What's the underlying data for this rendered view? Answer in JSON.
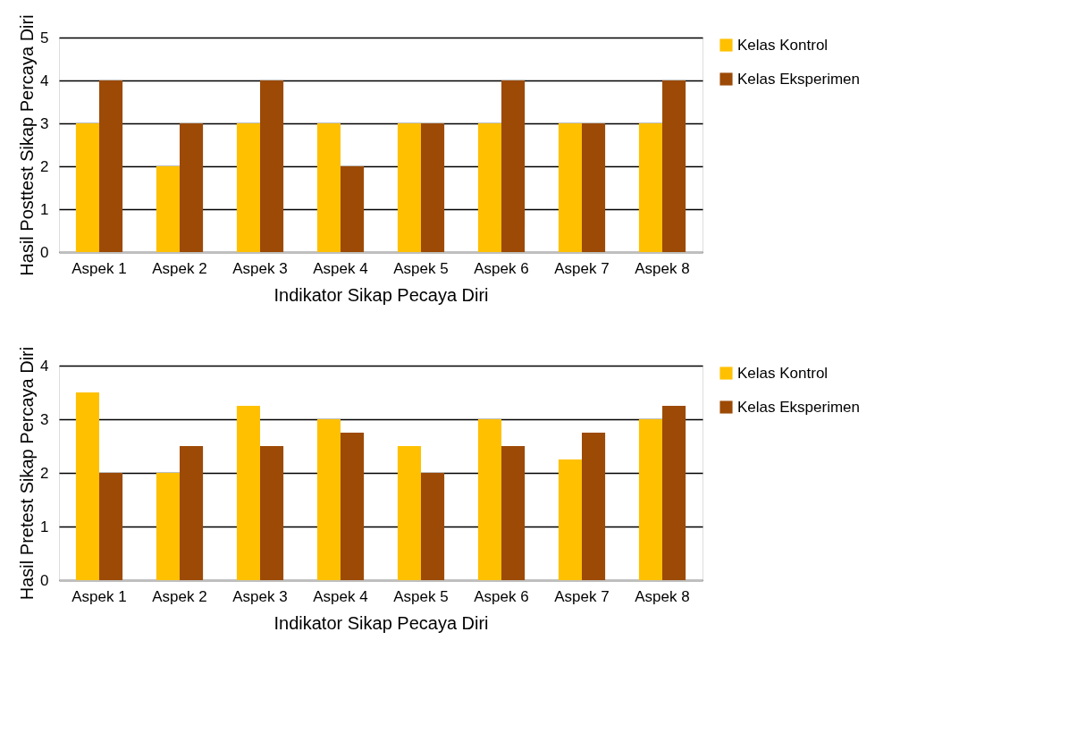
{
  "chart_data": [
    {
      "type": "bar",
      "xlabel": "Indikator Sikap Pecaya Diri",
      "ylabel": "Hasil Posttest Sikap Percaya Diri",
      "categories": [
        "Aspek 1",
        "Aspek 2",
        "Aspek 3",
        "Aspek 4",
        "Aspek 5",
        "Aspek 6",
        "Aspek 7",
        "Aspek 8"
      ],
      "ylim": [
        0,
        5
      ],
      "yticks": [
        0,
        1,
        2,
        3,
        4,
        5
      ],
      "grid": "y",
      "legend": "right",
      "series": [
        {
          "name": "Kelas Kontrol",
          "color": "#ffc000",
          "values": [
            3,
            2,
            3,
            3,
            3,
            3,
            3,
            3
          ]
        },
        {
          "name": "Kelas Eksperimen",
          "color": "#9c4a06",
          "values": [
            4,
            3,
            4,
            2,
            3,
            4,
            3,
            4
          ]
        }
      ]
    },
    {
      "type": "bar",
      "xlabel": "Indikator Sikap Pecaya Diri",
      "ylabel": "Hasil Pretest Sikap Percaya Diri",
      "categories": [
        "Aspek 1",
        "Aspek 2",
        "Aspek 3",
        "Aspek 4",
        "Aspek 5",
        "Aspek 6",
        "Aspek 7",
        "Aspek 8"
      ],
      "ylim": [
        0,
        4
      ],
      "yticks": [
        0,
        1,
        2,
        3,
        4
      ],
      "grid": "y",
      "legend": "right",
      "series": [
        {
          "name": "Kelas Kontrol",
          "color": "#ffc000",
          "values": [
            3.5,
            2,
            3.25,
            3,
            2.5,
            3,
            2.25,
            3
          ]
        },
        {
          "name": "Kelas Eksperimen",
          "color": "#9c4a06",
          "values": [
            2,
            2.5,
            2.5,
            2.75,
            2,
            2.5,
            2.75,
            3.25
          ]
        }
      ]
    }
  ]
}
